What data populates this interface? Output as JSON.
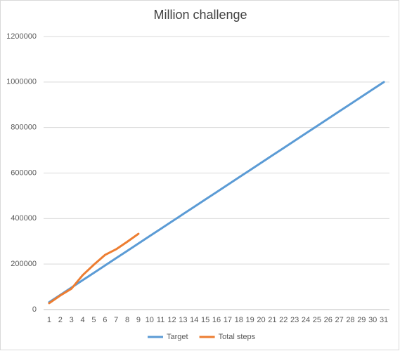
{
  "chart_data": {
    "type": "line",
    "title": "Million challenge",
    "categories": [
      1,
      2,
      3,
      4,
      5,
      6,
      7,
      8,
      9,
      10,
      11,
      12,
      13,
      14,
      15,
      16,
      17,
      18,
      19,
      20,
      21,
      22,
      23,
      24,
      25,
      26,
      27,
      28,
      29,
      30,
      31
    ],
    "series": [
      {
        "name": "Target",
        "color": "#5b9bd5",
        "values": [
          32258,
          64516,
          96774,
          129032,
          161290,
          193548,
          225806,
          258065,
          290323,
          322581,
          354839,
          387097,
          419355,
          451613,
          483871,
          516129,
          548387,
          580645,
          612903,
          645161,
          677419,
          709677,
          741935,
          774194,
          806452,
          838710,
          870968,
          903226,
          935484,
          967742,
          1000000
        ]
      },
      {
        "name": "Total steps",
        "color": "#ed7d31",
        "values": [
          28000,
          62000,
          92000,
          151000,
          197000,
          240000,
          265000,
          298000,
          333000,
          null,
          null,
          null,
          null,
          null,
          null,
          null,
          null,
          null,
          null,
          null,
          null,
          null,
          null,
          null,
          null,
          null,
          null,
          null,
          null,
          null,
          null
        ]
      }
    ],
    "ylim": [
      0,
      1200000
    ],
    "yticks": [
      0,
      200000,
      400000,
      600000,
      800000,
      1000000,
      1200000
    ],
    "grid": true,
    "legend": "bottom"
  }
}
